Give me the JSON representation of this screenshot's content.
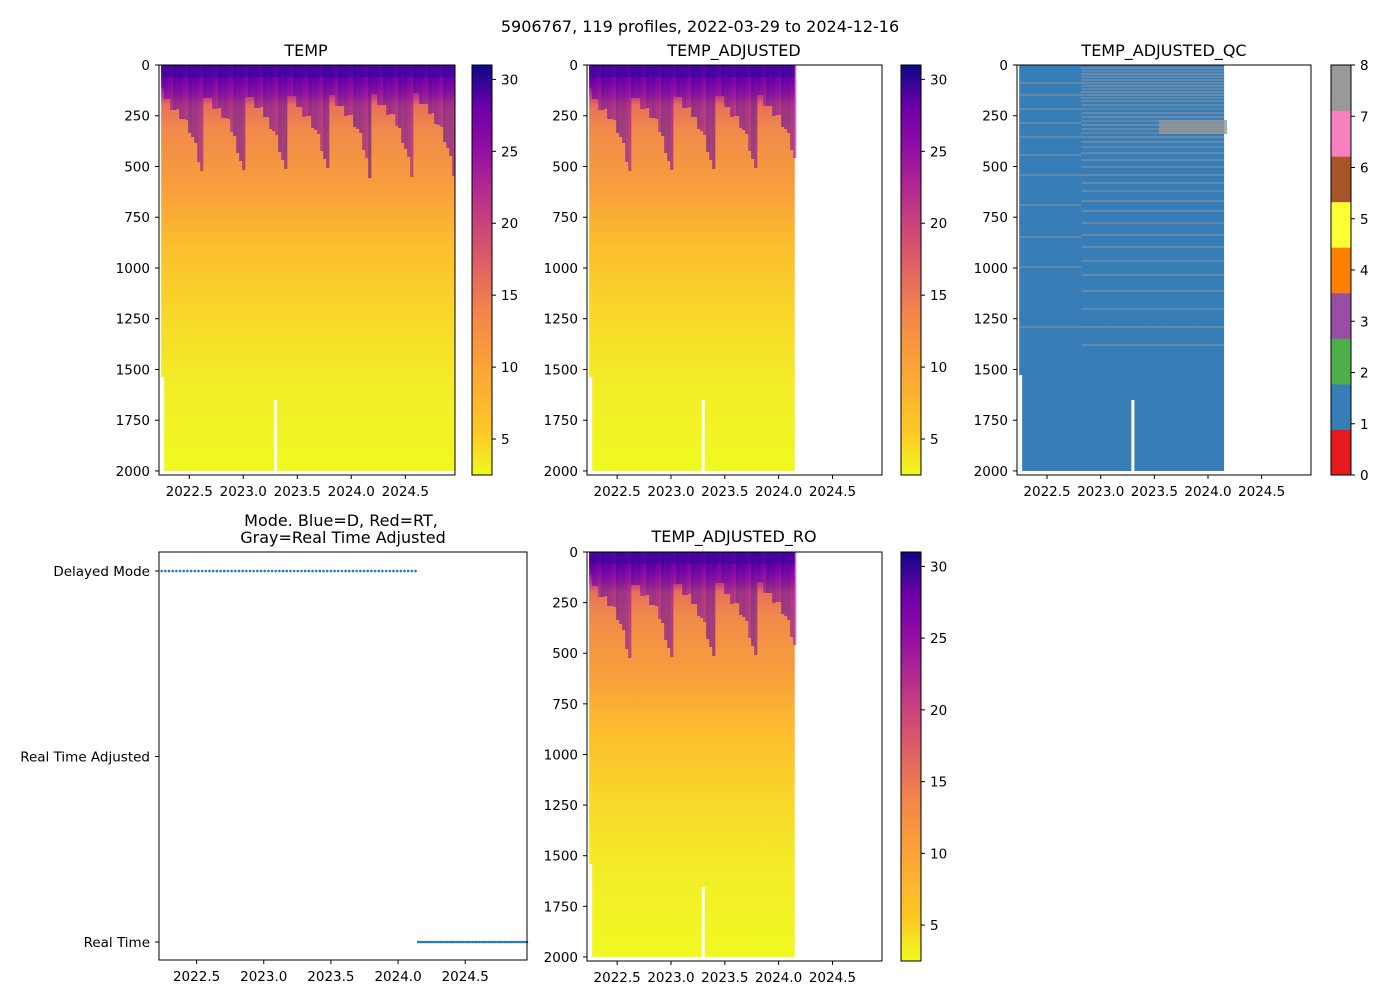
{
  "figure_title": "5906767, 119 profiles, 2022-03-29 to 2024-12-16",
  "chart_data": [
    {
      "id": "temp",
      "type": "heatmap",
      "title": "TEMP",
      "x_ticks": [
        "2022.5",
        "2023.0",
        "2023.5",
        "2024.0",
        "2024.5"
      ],
      "x_tick_values": [
        2022.5,
        2023.0,
        2023.5,
        2024.0,
        2024.5
      ],
      "xlim": [
        2022.22,
        2024.96
      ],
      "y_ticks": [
        "0",
        "250",
        "500",
        "750",
        "1000",
        "1250",
        "1500",
        "1750",
        "2000"
      ],
      "y_tick_values": [
        0,
        250,
        500,
        750,
        1000,
        1250,
        1500,
        1750,
        2000
      ],
      "ylim": [
        2020,
        0
      ],
      "data_x_range": [
        2022.24,
        2024.96
      ],
      "colormap": "plasma_r",
      "colorbar": {
        "ticks": [
          "5",
          "10",
          "15",
          "20",
          "25",
          "30"
        ],
        "tick_values": [
          5,
          10,
          15,
          20,
          25,
          30
        ],
        "range": [
          2.5,
          31
        ]
      }
    },
    {
      "id": "temp-adjusted",
      "type": "heatmap",
      "title": "TEMP_ADJUSTED",
      "x_ticks": [
        "2022.5",
        "2023.0",
        "2023.5",
        "2024.0",
        "2024.5"
      ],
      "x_tick_values": [
        2022.5,
        2023.0,
        2023.5,
        2024.0,
        2024.5
      ],
      "xlim": [
        2022.22,
        2024.96
      ],
      "y_ticks": [
        "0",
        "250",
        "500",
        "750",
        "1000",
        "1250",
        "1500",
        "1750",
        "2000"
      ],
      "y_tick_values": [
        0,
        250,
        500,
        750,
        1000,
        1250,
        1500,
        1750,
        2000
      ],
      "ylim": [
        2020,
        0
      ],
      "data_x_range": [
        2022.24,
        2024.15
      ],
      "colormap": "plasma_r",
      "colorbar": {
        "ticks": [
          "5",
          "10",
          "15",
          "20",
          "25",
          "30"
        ],
        "tick_values": [
          5,
          10,
          15,
          20,
          25,
          30
        ],
        "range": [
          2.5,
          31
        ]
      }
    },
    {
      "id": "temp-adjusted-qc",
      "type": "heatmap",
      "title": "TEMP_ADJUSTED_QC",
      "x_ticks": [
        "2022.5",
        "2023.0",
        "2023.5",
        "2024.0",
        "2024.5"
      ],
      "x_tick_values": [
        2022.5,
        2023.0,
        2023.5,
        2024.0,
        2024.5
      ],
      "xlim": [
        2022.22,
        2024.96
      ],
      "y_ticks": [
        "0",
        "250",
        "500",
        "750",
        "1000",
        "1250",
        "1500",
        "1750",
        "2000"
      ],
      "y_tick_values": [
        0,
        250,
        500,
        750,
        1000,
        1250,
        1500,
        1750,
        2000
      ],
      "ylim": [
        2020,
        0
      ],
      "data_x_range": [
        2022.24,
        2024.15
      ],
      "dominant_flag": 1,
      "secondary_flag": 8,
      "colorbar": {
        "ticks": [
          "0",
          "1",
          "2",
          "3",
          "4",
          "5",
          "6",
          "7",
          "8"
        ],
        "tick_values": [
          0,
          1,
          2,
          3,
          4,
          5,
          6,
          7,
          8
        ],
        "range": [
          0,
          8
        ],
        "categories": [
          {
            "flag": 0,
            "color": "#e41a1c"
          },
          {
            "flag": 1,
            "color": "#377eb8"
          },
          {
            "flag": 2,
            "color": "#4daf4a"
          },
          {
            "flag": 3,
            "color": "#984ea3"
          },
          {
            "flag": 4,
            "color": "#ff7f00"
          },
          {
            "flag": 5,
            "color": "#ffff33"
          },
          {
            "flag": 6,
            "color": "#a65628"
          },
          {
            "flag": 7,
            "color": "#f781bf"
          },
          {
            "flag": 8,
            "color": "#999999"
          }
        ]
      }
    },
    {
      "id": "mode",
      "type": "scatter",
      "title_line1": "Mode. Blue=D, Red=RT,",
      "title_line2": "Gray=Real Time Adjusted",
      "x_ticks": [
        "2022.5",
        "2023.0",
        "2023.5",
        "2024.0",
        "2024.5"
      ],
      "x_tick_values": [
        2022.5,
        2023.0,
        2023.5,
        2024.0,
        2024.5
      ],
      "xlim": [
        2022.22,
        2024.96
      ],
      "y_categories": [
        "Delayed Mode",
        "Real Time Adjusted",
        "Real Time"
      ],
      "color": "#1f77b4",
      "series": [
        {
          "name": "Delayed Mode",
          "level": "Delayed Mode",
          "x_start": 2022.24,
          "x_end": 2024.13,
          "count": 70
        },
        {
          "name": "Real Time",
          "level": "Real Time",
          "x_start": 2024.15,
          "x_end": 2024.96,
          "count": 49
        }
      ]
    },
    {
      "id": "temp-adjusted-ro",
      "type": "heatmap",
      "title": "TEMP_ADJUSTED_RO",
      "x_ticks": [
        "2022.5",
        "2023.0",
        "2023.5",
        "2024.0",
        "2024.5"
      ],
      "x_tick_values": [
        2022.5,
        2023.0,
        2023.5,
        2024.0,
        2024.5
      ],
      "xlim": [
        2022.22,
        2024.96
      ],
      "y_ticks": [
        "0",
        "250",
        "500",
        "750",
        "1000",
        "1250",
        "1500",
        "1750",
        "2000"
      ],
      "y_tick_values": [
        0,
        250,
        500,
        750,
        1000,
        1250,
        1500,
        1750,
        2000
      ],
      "ylim": [
        2020,
        0
      ],
      "data_x_range": [
        2022.24,
        2024.15
      ],
      "colormap": "plasma_r",
      "colorbar": {
        "ticks": [
          "5",
          "10",
          "15",
          "20",
          "25",
          "30"
        ],
        "tick_values": [
          5,
          10,
          15,
          20,
          25,
          30
        ],
        "range": [
          2.5,
          31
        ]
      }
    }
  ]
}
